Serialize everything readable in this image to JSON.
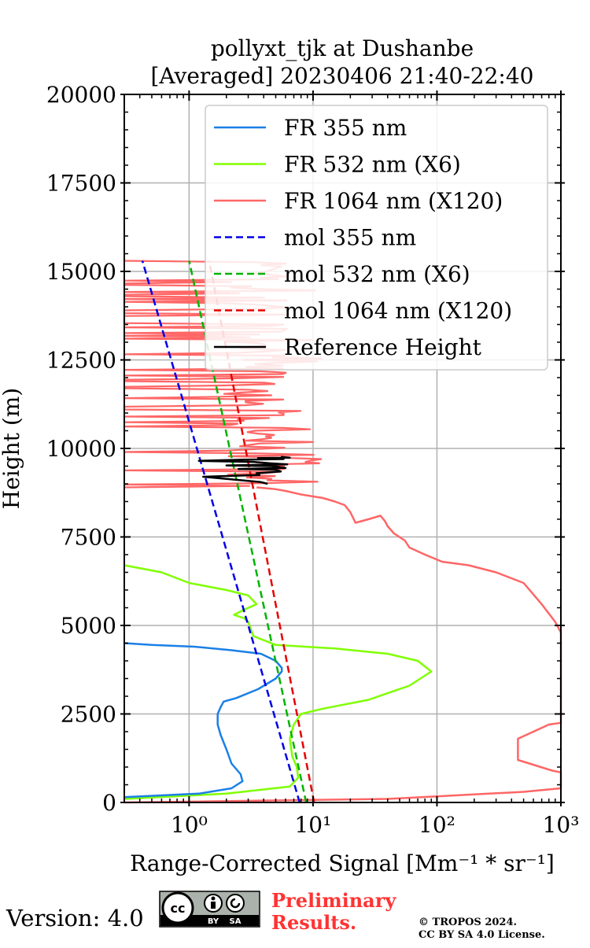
{
  "chart_data": {
    "type": "line",
    "title": [
      "pollyxt_tjk at Dushanbe",
      "[Averaged] 20230406 21:40-22:40"
    ],
    "xlabel": "Range-Corrected Signal [Mm⁻¹ * sr⁻¹]",
    "ylabel": "Height (m)",
    "xscale": "log",
    "xlim": [
      0.3,
      1000
    ],
    "ylim": [
      0,
      20000
    ],
    "xticks": [
      1,
      10,
      100,
      1000
    ],
    "xtick_labels": [
      "10⁰",
      "10¹",
      "10²",
      "10³"
    ],
    "yticks": [
      0,
      2500,
      5000,
      7500,
      10000,
      12500,
      15000,
      17500,
      20000
    ],
    "ytick_labels": [
      "0",
      "2500",
      "5000",
      "7500",
      "10000",
      "12500",
      "15000",
      "17500",
      "20000"
    ],
    "grid": true,
    "legend_position": "top-right",
    "series": [
      {
        "name": "FR 355 nm",
        "color": "#1a80e6",
        "style": "solid",
        "x": [
          0.3,
          1.2,
          2.2,
          2.7,
          2.6,
          2.2,
          2.0,
          1.8,
          1.7,
          1.7,
          1.8,
          1.9,
          2.4,
          3.6,
          5.0,
          5.6,
          5.6,
          5.0,
          3.8,
          2.2,
          1.1,
          0.5,
          0.3
        ],
        "y": [
          150,
          250,
          400,
          600,
          800,
          1100,
          1500,
          1900,
          2200,
          2500,
          2700,
          2850,
          2950,
          3200,
          3500,
          3700,
          3800,
          4000,
          4200,
          4300,
          4400,
          4450,
          4500
        ]
      },
      {
        "name": "FR 532 nm (X6)",
        "color": "#80ff00",
        "style": "solid",
        "x": [
          0.3,
          2.0,
          6.5,
          7.6,
          7.4,
          6.8,
          6.5,
          7.0,
          8.0,
          12,
          28,
          60,
          90,
          70,
          40,
          15,
          5,
          3.3,
          3.0,
          2.8,
          2.3,
          2.8,
          3.5,
          3.0,
          2.0,
          1.0,
          0.6,
          0.3
        ],
        "y": [
          100,
          250,
          450,
          700,
          1000,
          1300,
          1800,
          2200,
          2500,
          2650,
          2900,
          3300,
          3700,
          4000,
          4200,
          4350,
          4450,
          4700,
          5100,
          5200,
          5300,
          5450,
          5600,
          5850,
          6000,
          6200,
          6500,
          6700
        ]
      },
      {
        "name": "FR 1064 nm (X120)",
        "color": "#ff6666",
        "style": "solid",
        "x": [
          0.3,
          40,
          500,
          1000,
          1000,
          850,
          450,
          450,
          800,
          1000,
          1000,
          900,
          700,
          500,
          300,
          180,
          110,
          80,
          60,
          55,
          45,
          40,
          38,
          35,
          28,
          22,
          20,
          18,
          15,
          12,
          8,
          6,
          5,
          3.5
        ],
        "y": [
          0,
          100,
          300,
          400,
          850,
          900,
          1200,
          1800,
          2200,
          2250,
          4800,
          5100,
          5600,
          6200,
          6500,
          6700,
          6800,
          7000,
          7200,
          7400,
          7600,
          7800,
          7950,
          8100,
          8000,
          7900,
          8200,
          8400,
          8500,
          8600,
          8700,
          8800,
          8850,
          8900
        ]
      },
      {
        "name": "mol 355 nm",
        "color": "#0000e6",
        "style": "dashed",
        "x": [
          7.8,
          0.42
        ],
        "y": [
          0,
          15300
        ]
      },
      {
        "name": "mol 532 nm (X6)",
        "color": "#00b300",
        "style": "dashed",
        "x": [
          8.8,
          1.0
        ],
        "y": [
          0,
          15300
        ]
      },
      {
        "name": "mol 1064 nm (X120)",
        "color": "#e60000",
        "style": "dashed",
        "x": [
          10.2,
          1.45
        ],
        "y": [
          0,
          15300
        ]
      },
      {
        "name": "Reference Height",
        "color": "#000000",
        "style": "solid",
        "x": [
          4.3,
          3.8,
          1.3,
          3.7,
          3.5,
          5.5,
          5.0,
          2.5,
          6.0,
          5.2,
          4.8,
          2.0,
          6.2,
          4.5,
          3.3,
          1.2,
          2.6,
          5.8,
          4.0,
          3.6,
          6.5,
          5.5
        ],
        "y": [
          9000,
          9050,
          9200,
          9250,
          9300,
          9350,
          9400,
          9420,
          9450,
          9480,
          9500,
          9520,
          9550,
          9580,
          9620,
          9650,
          9680,
          9700,
          9720,
          9730,
          9740,
          9760
        ]
      }
    ]
  },
  "footer": {
    "version": "Version: 4.0",
    "preliminary_line1": "Preliminary",
    "preliminary_line2": "Results.",
    "copyright_line1": "© TROPOS 2024.",
    "copyright_line2": "CC BY SA 4.0 License.",
    "cc_by": "BY",
    "cc_sa": "SA"
  }
}
